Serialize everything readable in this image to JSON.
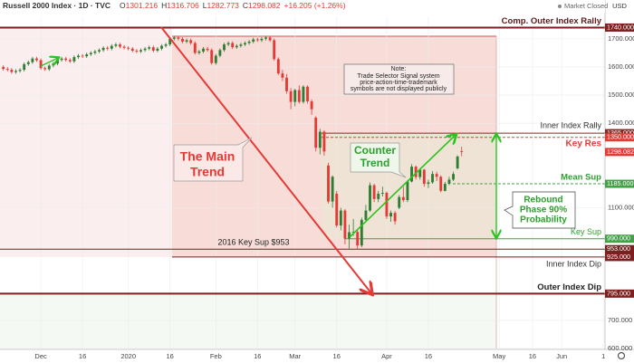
{
  "header": {
    "title": "Russell 2000 Index · 1D · TVC",
    "fields": [
      "O",
      "H",
      "L",
      "C"
    ],
    "change": "+16.205 (+1.26%)",
    "status": "Market Closed",
    "currency": "USD"
  },
  "chart_data": {
    "type": "candlestick",
    "x": [
      0,
      1,
      2,
      3,
      4,
      5,
      6,
      7,
      8,
      9,
      10,
      11,
      12,
      13,
      14,
      15,
      16,
      17,
      18,
      19,
      20,
      21,
      22,
      23,
      24,
      25,
      26,
      27,
      28,
      29,
      30,
      31,
      32,
      33,
      34,
      35,
      36,
      37,
      38,
      39,
      40,
      41,
      42,
      43,
      44,
      45,
      46,
      47,
      48,
      49,
      50,
      51,
      52,
      53,
      54,
      55,
      56,
      57,
      58,
      59,
      60,
      61,
      62,
      63,
      64,
      65,
      66,
      67,
      68,
      69,
      70,
      71,
      72,
      73,
      74,
      75,
      76,
      77,
      78,
      79,
      80,
      81,
      82,
      83,
      84,
      85,
      86,
      87,
      88,
      89,
      90,
      91,
      92,
      93,
      94,
      95,
      96,
      97,
      98,
      99,
      100,
      101,
      102,
      103,
      104,
      105,
      106,
      107,
      108,
      109,
      110
    ],
    "open": [
      1600,
      1593,
      1590,
      1582,
      1586,
      1590,
      1610,
      1617,
      1630,
      1624,
      1596,
      1592,
      1605,
      1612,
      1625,
      1630,
      1625,
      1620,
      1635,
      1640,
      1638,
      1645,
      1650,
      1655,
      1660,
      1668,
      1665,
      1675,
      1680,
      1672,
      1668,
      1665,
      1658,
      1655,
      1660,
      1665,
      1670,
      1658,
      1665,
      1675,
      1680,
      1700,
      1705,
      1700,
      1690,
      1695,
      1685,
      1650,
      1655,
      1665,
      1660,
      1614,
      1640,
      1660,
      1680,
      1685,
      1670,
      1675,
      1680,
      1685,
      1690,
      1698,
      1695,
      1700,
      1705,
      1695,
      1628,
      1577,
      1562,
      1514,
      1476,
      1518,
      1476,
      1530,
      1478,
      1420,
      1313,
      1370,
      1250,
      1122,
      1150,
      1037,
      1090,
      991,
      1013,
      1014,
      966,
      1057,
      1090,
      1180,
      1131,
      1150,
      1153,
      1069,
      1082,
      1100,
      1138,
      1127,
      1193,
      1246,
      1209,
      1235,
      1185,
      1190,
      1220,
      1210,
      1160,
      1185,
      1200,
      1240,
      1301.216
    ],
    "high": [
      1606,
      1599,
      1596,
      1592,
      1596,
      1616,
      1623,
      1636,
      1636,
      1630,
      1602,
      1611,
      1618,
      1631,
      1636,
      1636,
      1631,
      1641,
      1646,
      1646,
      1651,
      1656,
      1661,
      1666,
      1674,
      1674,
      1681,
      1686,
      1686,
      1678,
      1674,
      1671,
      1664,
      1666,
      1671,
      1676,
      1676,
      1671,
      1681,
      1686,
      1706,
      1711,
      1711,
      1706,
      1701,
      1701,
      1691,
      1661,
      1671,
      1671,
      1666,
      1646,
      1666,
      1686,
      1691,
      1691,
      1681,
      1686,
      1691,
      1696,
      1704,
      1704,
      1706,
      1711,
      1711,
      1701,
      1634,
      1590,
      1575,
      1525,
      1522,
      1535,
      1535,
      1535,
      1485,
      1425,
      1380,
      1375,
      1260,
      1215,
      1160,
      1100,
      1095,
      1040,
      1060,
      1020,
      1065,
      1110,
      1190,
      1185,
      1160,
      1175,
      1158,
      1090,
      1088,
      1145,
      1175,
      1198,
      1255,
      1250,
      1240,
      1238,
      1200,
      1230,
      1228,
      1215,
      1192,
      1210,
      1228,
      1286,
      1316.706
    ],
    "low": [
      1587,
      1584,
      1576,
      1576,
      1580,
      1584,
      1604,
      1611,
      1618,
      1590,
      1586,
      1586,
      1599,
      1606,
      1619,
      1619,
      1614,
      1614,
      1629,
      1632,
      1632,
      1639,
      1644,
      1649,
      1654,
      1659,
      1659,
      1669,
      1666,
      1662,
      1659,
      1652,
      1649,
      1649,
      1654,
      1659,
      1652,
      1652,
      1659,
      1669,
      1674,
      1694,
      1694,
      1684,
      1684,
      1679,
      1644,
      1644,
      1649,
      1654,
      1608,
      1608,
      1634,
      1654,
      1674,
      1664,
      1664,
      1669,
      1674,
      1679,
      1684,
      1689,
      1689,
      1694,
      1689,
      1622,
      1571,
      1550,
      1505,
      1450,
      1460,
      1470,
      1470,
      1470,
      1430,
      1300,
      1290,
      1285,
      1115,
      1100,
      1030,
      1020,
      970,
      955,
      1000,
      955,
      960,
      1050,
      1085,
      1120,
      1120,
      1140,
      1060,
      1050,
      1040,
      1095,
      1120,
      1120,
      1190,
      1200,
      1200,
      1175,
      1170,
      1185,
      1195,
      1155,
      1158,
      1180,
      1195,
      1236,
      1282.773
    ],
    "close": [
      1593,
      1590,
      1582,
      1586,
      1590,
      1610,
      1617,
      1630,
      1624,
      1596,
      1592,
      1605,
      1612,
      1625,
      1630,
      1625,
      1620,
      1635,
      1640,
      1638,
      1645,
      1650,
      1655,
      1660,
      1668,
      1665,
      1675,
      1680,
      1672,
      1668,
      1665,
      1658,
      1655,
      1660,
      1665,
      1670,
      1658,
      1665,
      1675,
      1680,
      1700,
      1705,
      1700,
      1690,
      1695,
      1685,
      1650,
      1655,
      1665,
      1660,
      1614,
      1640,
      1660,
      1680,
      1685,
      1670,
      1675,
      1680,
      1685,
      1690,
      1698,
      1695,
      1700,
      1705,
      1695,
      1628,
      1577,
      1562,
      1514,
      1476,
      1518,
      1476,
      1530,
      1478,
      1450,
      1313,
      1370,
      1300,
      1122,
      1210,
      1037,
      1090,
      991,
      1013,
      1014,
      966,
      1057,
      1090,
      1180,
      1131,
      1150,
      1153,
      1069,
      1082,
      1052,
      1138,
      1127,
      1193,
      1246,
      1209,
      1235,
      1185,
      1190,
      1220,
      1210,
      1160,
      1185,
      1200,
      1220,
      1281.877,
      1298.082
    ],
    "up_color": "#2e7d32",
    "down_color": "#e53935",
    "last_color": "#e53935",
    "xlim": [
      -0.8,
      144.4
    ],
    "xticks": [
      {
        "value": 9,
        "label": "Dec"
      },
      {
        "value": 19,
        "label": "16"
      },
      {
        "value": 30,
        "label": "2020"
      },
      {
        "value": 40,
        "label": "16"
      },
      {
        "value": 51,
        "label": "Feb"
      },
      {
        "value": 61,
        "label": "16"
      },
      {
        "value": 70,
        "label": "Mar"
      },
      {
        "value": 80,
        "label": "16"
      },
      {
        "value": 92,
        "label": "Apr"
      },
      {
        "value": 102,
        "label": "16"
      },
      {
        "value": 119,
        "label": "May"
      },
      {
        "value": 127,
        "label": "16"
      },
      {
        "value": 134,
        "label": "Jun"
      },
      {
        "value": 144,
        "label": "1"
      }
    ],
    "ylim": [
      600,
      1780
    ],
    "yticks": [
      {
        "value": 600,
        "label": "600.000"
      },
      {
        "value": 700,
        "label": "700.000"
      },
      {
        "value": 1100,
        "label": "1100.000"
      },
      {
        "value": 1400,
        "label": "1400.000"
      },
      {
        "value": 1500,
        "label": "1500.000"
      },
      {
        "value": 1600,
        "label": "1600.000"
      },
      {
        "value": 1700,
        "label": "1700.000"
      }
    ],
    "grid": true,
    "levels": [
      {
        "value": 1740,
        "label": "Comp. Outer Index Rally",
        "tag": "1740.000",
        "color": "#7b1f1f"
      },
      {
        "value": 1365,
        "label": "Inner Index Rally",
        "tag": "1365.000",
        "color": "#8e2424"
      },
      {
        "value": 1350,
        "label": "Key Res",
        "tag": "1350.000",
        "color": "#e53935"
      },
      {
        "value": 1185,
        "label": "Mean Sup",
        "tag": "1185.000",
        "color": "#43a047"
      },
      {
        "value": 990,
        "label": "Key Sup",
        "tag": "990.000",
        "color": "#43a047"
      },
      {
        "value": 953,
        "label": "2016 Key Sup $953",
        "tag": "953.000",
        "color": "#7b1f1f"
      },
      {
        "value": 925,
        "label": "Inner Index Dip",
        "tag": "925.000",
        "color": "#7b1f1f"
      },
      {
        "value": 795,
        "label": "Outer Index Dip",
        "tag": "795.000",
        "color": "#7b1f1f"
      }
    ],
    "annotations": {
      "note": [
        "Note:",
        "Trade Selector Signal system",
        "price-action-time-trademark",
        "symbols are not displayed publicly"
      ],
      "main_trend": [
        "The Main",
        "Trend"
      ],
      "counter_trend": [
        "Counter",
        "Trend"
      ],
      "rebound": [
        "Rebound",
        "Phase 90%",
        "Probability"
      ]
    }
  }
}
